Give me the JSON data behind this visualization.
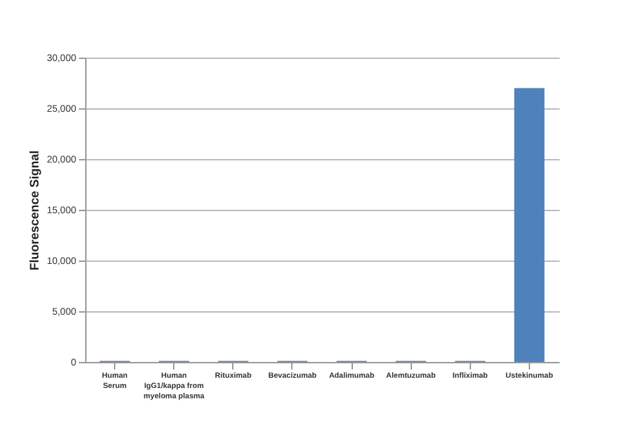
{
  "chart_data": {
    "type": "bar",
    "ylabel": "Fluorescence Signal",
    "categories": [
      "Human Serum",
      "Human IgG1/kappa from myeloma plasma",
      "Rituximab",
      "Bevacizumab",
      "Adalimumab",
      "Alemtuzumab",
      "Infliximab",
      "Ustekinumab"
    ],
    "values": [
      100,
      100,
      100,
      100,
      100,
      100,
      100,
      27000
    ],
    "color": "#4f81bd",
    "ylim": [
      0,
      30000
    ],
    "yticks": [
      0,
      {
        "value": 5000,
        "label": "5,000"
      },
      {
        "value": 10000,
        "label": "10,000"
      },
      {
        "value": 15000,
        "label": "15,000"
      },
      {
        "value": 20000,
        "label": "20,000"
      },
      {
        "value": 25000,
        "label": "25,000"
      },
      {
        "value": 30000,
        "label": "30,000"
      }
    ],
    "grid": "y"
  }
}
